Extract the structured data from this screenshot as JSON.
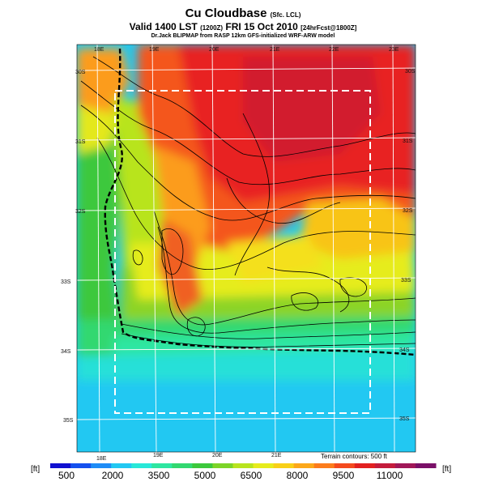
{
  "title": {
    "main": "Cu Cloudbase",
    "main_sub": "(Sfc. LCL)",
    "valid": "Valid 1400 LST",
    "valid_small": "(1200Z)",
    "valid_date": "FRI 15 Oct 2010",
    "valid_fcst": "[24hrFcst@1800Z]",
    "credit": "Dr.Jack BLIPMAP from RASP 12km GFS-initialized WRF-ARW model"
  },
  "lon_labels_top": [
    "18E",
    "19E",
    "20E",
    "21E",
    "22E",
    "23E"
  ],
  "lon_labels_bottom": [
    "18E",
    "19E",
    "20E",
    "21E"
  ],
  "lat_labels_left": [
    "30S",
    "31S",
    "32S",
    "33S",
    "34S",
    "35S"
  ],
  "lat_labels_right": [
    "30S",
    "31S",
    "32S",
    "33S",
    "34S",
    "35S"
  ],
  "terrain_note": "Terrain contours: 500 ft",
  "colorbar": {
    "unit": "[ft]",
    "labels": [
      "500",
      "2000",
      "3500",
      "5000",
      "6500",
      "8000",
      "9500",
      "11000"
    ],
    "colors": [
      "#1010d0",
      "#1550ee",
      "#1e8cf6",
      "#22c8f2",
      "#28e8d8",
      "#2ee6a0",
      "#32d870",
      "#3cc83c",
      "#7cd428",
      "#b8e41e",
      "#e6ec1c",
      "#f8d018",
      "#fca81a",
      "#fc7c1c",
      "#f44a1e",
      "#e22020",
      "#c41c3c",
      "#a01858",
      "#7a1068"
    ]
  }
}
